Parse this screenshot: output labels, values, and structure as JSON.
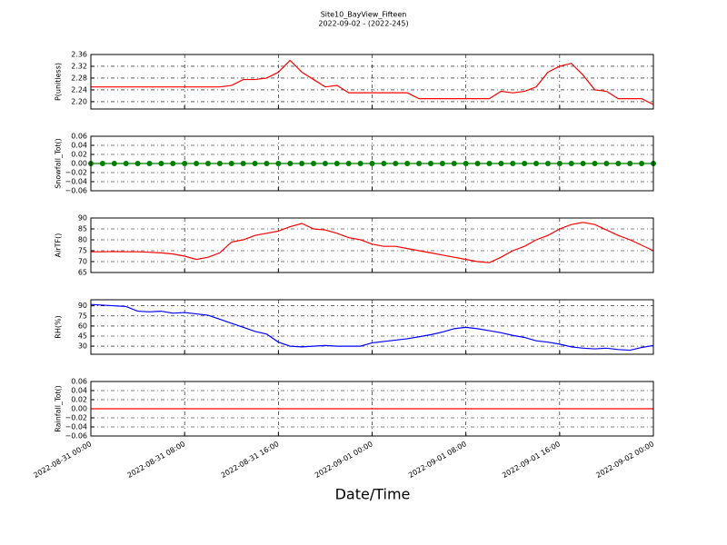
{
  "chart_data": [
    {
      "type": "line",
      "title": "Site10_BayView_Fifteen",
      "subtitle": "2022-09-02 - (2022-245)",
      "ylabel": "P(unitless)",
      "color": "#ff0000",
      "xlim": [
        "2022-08-31 00:00",
        "2022-09-02 00:00"
      ],
      "ylim": [
        2.175,
        2.36
      ],
      "yticks": [
        {
          "value": 2.2,
          "label": "2.20"
        },
        2.24,
        2.28,
        2.32,
        2.36
      ],
      "grid": true,
      "x": [
        "2022-08-31 00:00",
        "2022-08-31 01:00",
        "2022-08-31 02:00",
        "2022-08-31 03:00",
        "2022-08-31 04:00",
        "2022-08-31 05:00",
        "2022-08-31 06:00",
        "2022-08-31 07:00",
        "2022-08-31 08:00",
        "2022-08-31 09:00",
        "2022-08-31 10:00",
        "2022-08-31 11:00",
        "2022-08-31 12:00",
        "2022-08-31 13:00",
        "2022-08-31 14:00",
        "2022-08-31 15:00",
        "2022-08-31 16:00",
        "2022-08-31 17:00",
        "2022-08-31 18:00",
        "2022-08-31 19:00",
        "2022-08-31 20:00",
        "2022-08-31 21:00",
        "2022-08-31 22:00",
        "2022-08-31 23:00",
        "2022-09-01 00:00",
        "2022-09-01 01:00",
        "2022-09-01 02:00",
        "2022-09-01 03:00",
        "2022-09-01 04:00",
        "2022-09-01 05:00",
        "2022-09-01 06:00",
        "2022-09-01 07:00",
        "2022-09-01 08:00",
        "2022-09-01 09:00",
        "2022-09-01 10:00",
        "2022-09-01 11:00",
        "2022-09-01 12:00",
        "2022-09-01 13:00",
        "2022-09-01 14:00",
        "2022-09-01 15:00",
        "2022-09-01 16:00",
        "2022-09-01 17:00",
        "2022-09-01 18:00",
        "2022-09-01 19:00",
        "2022-09-01 20:00",
        "2022-09-01 21:00",
        "2022-09-01 22:00",
        "2022-09-01 23:00",
        "2022-09-02 00:00"
      ],
      "values": [
        2.25,
        2.25,
        2.25,
        2.25,
        2.25,
        2.25,
        2.25,
        2.25,
        2.25,
        2.25,
        2.25,
        2.25,
        2.255,
        2.275,
        2.275,
        2.28,
        2.3,
        2.34,
        2.3,
        2.275,
        2.25,
        2.255,
        2.23,
        2.23,
        2.23,
        2.23,
        2.23,
        2.23,
        2.21,
        2.21,
        2.21,
        2.21,
        2.21,
        2.21,
        2.21,
        2.235,
        2.23,
        2.235,
        2.25,
        2.3,
        2.32,
        2.33,
        2.29,
        2.24,
        2.235,
        2.21,
        2.21,
        2.21,
        2.19
      ]
    },
    {
      "type": "line",
      "ylabel": "Snowfall_Tot()",
      "color": "#008000",
      "markers": true,
      "xlim": [
        "2022-08-31 00:00",
        "2022-09-02 00:00"
      ],
      "ylim": [
        -0.06,
        0.06
      ],
      "yticks": [
        {
          "value": -0.06,
          "label": "−0.06"
        },
        {
          "value": -0.04,
          "label": "−0.04"
        },
        {
          "value": -0.02,
          "label": "−0.02"
        },
        {
          "value": 0,
          "label": "0.00"
        },
        {
          "value": 0.02,
          "label": "0.02"
        },
        {
          "value": 0.04,
          "label": "0.04"
        },
        {
          "value": 0.06,
          "label": "0.06"
        }
      ],
      "grid": true,
      "x": [
        "2022-08-31 00:00",
        "2022-08-31 01:00",
        "2022-08-31 02:00",
        "2022-08-31 03:00",
        "2022-08-31 04:00",
        "2022-08-31 05:00",
        "2022-08-31 06:00",
        "2022-08-31 07:00",
        "2022-08-31 08:00",
        "2022-08-31 09:00",
        "2022-08-31 10:00",
        "2022-08-31 11:00",
        "2022-08-31 12:00",
        "2022-08-31 13:00",
        "2022-08-31 14:00",
        "2022-08-31 15:00",
        "2022-08-31 16:00",
        "2022-08-31 17:00",
        "2022-08-31 18:00",
        "2022-08-31 19:00",
        "2022-08-31 20:00",
        "2022-08-31 21:00",
        "2022-08-31 22:00",
        "2022-08-31 23:00",
        "2022-09-01 00:00",
        "2022-09-01 01:00",
        "2022-09-01 02:00",
        "2022-09-01 03:00",
        "2022-09-01 04:00",
        "2022-09-01 05:00",
        "2022-09-01 06:00",
        "2022-09-01 07:00",
        "2022-09-01 08:00",
        "2022-09-01 09:00",
        "2022-09-01 10:00",
        "2022-09-01 11:00",
        "2022-09-01 12:00",
        "2022-09-01 13:00",
        "2022-09-01 14:00",
        "2022-09-01 15:00",
        "2022-09-01 16:00",
        "2022-09-01 17:00",
        "2022-09-01 18:00",
        "2022-09-01 19:00",
        "2022-09-01 20:00",
        "2022-09-01 21:00",
        "2022-09-01 22:00",
        "2022-09-01 23:00",
        "2022-09-02 00:00"
      ],
      "values": [
        0,
        0,
        0,
        0,
        0,
        0,
        0,
        0,
        0,
        0,
        0,
        0,
        0,
        0,
        0,
        0,
        0,
        0,
        0,
        0,
        0,
        0,
        0,
        0,
        0,
        0,
        0,
        0,
        0,
        0,
        0,
        0,
        0,
        0,
        0,
        0,
        0,
        0,
        0,
        0,
        0,
        0,
        0,
        0,
        0,
        0,
        0,
        0,
        0
      ]
    },
    {
      "type": "line",
      "ylabel": "AirTF()",
      "color": "#ff0000",
      "xlim": [
        "2022-08-31 00:00",
        "2022-09-02 00:00"
      ],
      "ylim": [
        65,
        90
      ],
      "yticks": [
        65,
        70,
        75,
        80,
        85,
        90
      ],
      "grid": true,
      "x": [
        "2022-08-31 00:00",
        "2022-08-31 01:00",
        "2022-08-31 02:00",
        "2022-08-31 03:00",
        "2022-08-31 04:00",
        "2022-08-31 05:00",
        "2022-08-31 06:00",
        "2022-08-31 07:00",
        "2022-08-31 08:00",
        "2022-08-31 09:00",
        "2022-08-31 10:00",
        "2022-08-31 11:00",
        "2022-08-31 12:00",
        "2022-08-31 13:00",
        "2022-08-31 14:00",
        "2022-08-31 15:00",
        "2022-08-31 16:00",
        "2022-08-31 17:00",
        "2022-08-31 18:00",
        "2022-08-31 19:00",
        "2022-08-31 20:00",
        "2022-08-31 21:00",
        "2022-08-31 22:00",
        "2022-08-31 23:00",
        "2022-09-01 00:00",
        "2022-09-01 01:00",
        "2022-09-01 02:00",
        "2022-09-01 03:00",
        "2022-09-01 04:00",
        "2022-09-01 05:00",
        "2022-09-01 06:00",
        "2022-09-01 07:00",
        "2022-09-01 08:00",
        "2022-09-01 09:00",
        "2022-09-01 10:00",
        "2022-09-01 11:00",
        "2022-09-01 12:00",
        "2022-09-01 13:00",
        "2022-09-01 14:00",
        "2022-09-01 15:00",
        "2022-09-01 16:00",
        "2022-09-01 17:00",
        "2022-09-01 18:00",
        "2022-09-01 19:00",
        "2022-09-01 20:00",
        "2022-09-01 21:00",
        "2022-09-01 22:00",
        "2022-09-01 23:00",
        "2022-09-02 00:00"
      ],
      "values": [
        74.5,
        74.5,
        74.6,
        74.5,
        74.5,
        74.3,
        74,
        73.5,
        72.5,
        71,
        72,
        74,
        79,
        80,
        82,
        83,
        84,
        86,
        87.5,
        85,
        84.5,
        83,
        81,
        80,
        78,
        77,
        77,
        76,
        75,
        74,
        73,
        72,
        71,
        70,
        69.5,
        72,
        75,
        77,
        80,
        82,
        85,
        87,
        88,
        87,
        84.5,
        82,
        80,
        77.5,
        75
      ]
    },
    {
      "type": "line",
      "ylabel": "RH(%)",
      "color": "#0000ff",
      "xlim": [
        "2022-08-31 00:00",
        "2022-09-02 00:00"
      ],
      "ylim": [
        18,
        99
      ],
      "yticks": [
        30,
        45,
        60,
        75,
        90
      ],
      "grid": true,
      "x": [
        "2022-08-31 00:00",
        "2022-08-31 01:00",
        "2022-08-31 02:00",
        "2022-08-31 03:00",
        "2022-08-31 04:00",
        "2022-08-31 05:00",
        "2022-08-31 06:00",
        "2022-08-31 07:00",
        "2022-08-31 08:00",
        "2022-08-31 09:00",
        "2022-08-31 10:00",
        "2022-08-31 11:00",
        "2022-08-31 12:00",
        "2022-08-31 13:00",
        "2022-08-31 14:00",
        "2022-08-31 15:00",
        "2022-08-31 16:00",
        "2022-08-31 17:00",
        "2022-08-31 18:00",
        "2022-08-31 19:00",
        "2022-08-31 20:00",
        "2022-08-31 21:00",
        "2022-08-31 22:00",
        "2022-08-31 23:00",
        "2022-09-01 00:00",
        "2022-09-01 01:00",
        "2022-09-01 02:00",
        "2022-09-01 03:00",
        "2022-09-01 04:00",
        "2022-09-01 05:00",
        "2022-09-01 06:00",
        "2022-09-01 07:00",
        "2022-09-01 08:00",
        "2022-09-01 09:00",
        "2022-09-01 10:00",
        "2022-09-01 11:00",
        "2022-09-01 12:00",
        "2022-09-01 13:00",
        "2022-09-01 14:00",
        "2022-09-01 15:00",
        "2022-09-01 16:00",
        "2022-09-01 17:00",
        "2022-09-01 18:00",
        "2022-09-01 19:00",
        "2022-09-01 20:00",
        "2022-09-01 21:00",
        "2022-09-01 22:00",
        "2022-09-01 23:00",
        "2022-09-02 00:00"
      ],
      "values": [
        92,
        91,
        90,
        89,
        82,
        81,
        82,
        79,
        80,
        78,
        76,
        70,
        64,
        58,
        52,
        48,
        36,
        30,
        29,
        30,
        31,
        30,
        30,
        30,
        35,
        37,
        39,
        41,
        44,
        47,
        51,
        56,
        58,
        56,
        53,
        50,
        46,
        43,
        38,
        36,
        33,
        29,
        27,
        26,
        27,
        25,
        24,
        28,
        31
      ]
    },
    {
      "type": "line",
      "ylabel": "Rainfall_Tot()",
      "xlabel": "Date/Time",
      "color": "#ff0000",
      "xlim": [
        "2022-08-31 00:00",
        "2022-09-02 00:00"
      ],
      "xticks": [
        "2022-08-31 00:00",
        "2022-08-31 08:00",
        "2022-08-31 16:00",
        "2022-09-01 00:00",
        "2022-09-01 08:00",
        "2022-09-01 16:00",
        "2022-09-02 00:00"
      ],
      "ylim": [
        -0.06,
        0.06
      ],
      "yticks": [
        {
          "value": -0.06,
          "label": "−0.06"
        },
        {
          "value": -0.04,
          "label": "−0.04"
        },
        {
          "value": -0.02,
          "label": "−0.02"
        },
        {
          "value": 0,
          "label": "0.00"
        },
        {
          "value": 0.02,
          "label": "0.02"
        },
        {
          "value": 0.04,
          "label": "0.04"
        },
        {
          "value": 0.06,
          "label": "0.06"
        }
      ],
      "grid": true,
      "x": [
        "2022-08-31 00:00",
        "2022-08-31 01:00",
        "2022-08-31 02:00",
        "2022-08-31 03:00",
        "2022-08-31 04:00",
        "2022-08-31 05:00",
        "2022-08-31 06:00",
        "2022-08-31 07:00",
        "2022-08-31 08:00",
        "2022-08-31 09:00",
        "2022-08-31 10:00",
        "2022-08-31 11:00",
        "2022-08-31 12:00",
        "2022-08-31 13:00",
        "2022-08-31 14:00",
        "2022-08-31 15:00",
        "2022-08-31 16:00",
        "2022-08-31 17:00",
        "2022-08-31 18:00",
        "2022-08-31 19:00",
        "2022-08-31 20:00",
        "2022-08-31 21:00",
        "2022-08-31 22:00",
        "2022-08-31 23:00",
        "2022-09-01 00:00",
        "2022-09-01 01:00",
        "2022-09-01 02:00",
        "2022-09-01 03:00",
        "2022-09-01 04:00",
        "2022-09-01 05:00",
        "2022-09-01 06:00",
        "2022-09-01 07:00",
        "2022-09-01 08:00",
        "2022-09-01 09:00",
        "2022-09-01 10:00",
        "2022-09-01 11:00",
        "2022-09-01 12:00",
        "2022-09-01 13:00",
        "2022-09-01 14:00",
        "2022-09-01 15:00",
        "2022-09-01 16:00",
        "2022-09-01 17:00",
        "2022-09-01 18:00",
        "2022-09-01 19:00",
        "2022-09-01 20:00",
        "2022-09-01 21:00",
        "2022-09-01 22:00",
        "2022-09-01 23:00",
        "2022-09-02 00:00"
      ],
      "values": [
        0,
        0,
        0,
        0,
        0,
        0,
        0,
        0,
        0,
        0,
        0,
        0,
        0,
        0,
        0,
        0,
        0,
        0,
        0,
        0,
        0,
        0,
        0,
        0,
        0,
        0,
        0,
        0,
        0,
        0,
        0,
        0,
        0,
        0,
        0,
        0,
        0,
        0,
        0,
        0,
        0,
        0,
        0,
        0,
        0,
        0,
        0,
        0,
        0
      ]
    }
  ]
}
